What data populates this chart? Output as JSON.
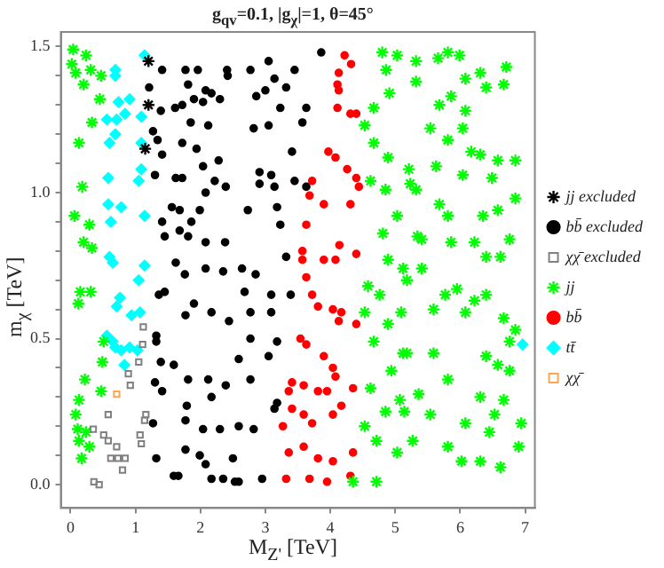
{
  "chart_data": {
    "type": "scatter",
    "title": "g$_{qv}$=0.1, |g$_{χ}$|=1, θ=45°",
    "xlabel": "M$_{Z'}$ [TeV]",
    "ylabel": "m$_{χ}$ [TeV]",
    "xlim": [
      -0.15,
      7.15
    ],
    "ylim": [
      -0.08,
      1.55
    ],
    "xticks": [
      0,
      1,
      2,
      3,
      4,
      5,
      6,
      7
    ],
    "yticks": [
      {
        "value": 0,
        "label": "0.0"
      },
      {
        "value": 0.1,
        "label": null
      },
      {
        "value": 0.2,
        "label": null
      },
      {
        "value": 0.3,
        "label": null
      },
      {
        "value": 0.4,
        "label": null
      },
      {
        "value": 0.5,
        "label": "0.5"
      },
      {
        "value": 0.6,
        "label": null
      },
      {
        "value": 0.7,
        "label": null
      },
      {
        "value": 0.8,
        "label": null
      },
      {
        "value": 0.9,
        "label": null
      },
      {
        "value": 1,
        "label": "1.0"
      },
      {
        "value": 1.1,
        "label": null
      },
      {
        "value": 1.2,
        "label": null
      },
      {
        "value": 1.3,
        "label": null
      },
      {
        "value": 1.4,
        "label": null
      },
      {
        "value": 1.5,
        "label": "1.5"
      }
    ],
    "legend": "right",
    "series": [
      {
        "name": "jj excluded",
        "color": "#000000",
        "marker": "cross",
        "x": [
          1.2,
          1.2,
          1.15
        ],
        "values": [
          1.45,
          1.3,
          1.15
        ]
      },
      {
        "name": "bb̄ excluded",
        "color": "#000000",
        "marker": "circle",
        "x": [
          1.21,
          1.41,
          1.39,
          1.27,
          1.34,
          1.41,
          1.3,
          1.77,
          1.81,
          1.96,
          1.61,
          1.72,
          1.9,
          2.08,
          2.04,
          2.17,
          2.41,
          2.42,
          2.3,
          1.85,
          2.12,
          1.72,
          1.94,
          2.28,
          2.04,
          1.62,
          1.72,
          1.41,
          1.56,
          1.68,
          1.86,
          1.99,
          2.08,
          2.22,
          2.39,
          1.45,
          1.68,
          1.81,
          2.08,
          2.38,
          1.62,
          1.76,
          2.08,
          2.35,
          1.45,
          1.36,
          1.77,
          1.9,
          2.17,
          2.44,
          1.32,
          1.32,
          1.39,
          1.59,
          1.81,
          2.12,
          2.39,
          1.3,
          1.41,
          1.79,
          2.17,
          1.27,
          1.77,
          2.04,
          2.3,
          1.32,
          1.77,
          1.99,
          2.08,
          1.59,
          1.66,
          2.17,
          2.35,
          2.53,
          3.86,
          3.05,
          2.77,
          3.45,
          3.14,
          3.0,
          3.32,
          2.86,
          3.63,
          3.23,
          3.57,
          2.82,
          3.05,
          3.41,
          2.91,
          3.09,
          2.91,
          3.14,
          3.45,
          3.63,
          2.73,
          3.18,
          3.23,
          3.32,
          2.64,
          2.85,
          2.68,
          3.09,
          3.39,
          2.77,
          3.09,
          3.18,
          2.77,
          3.05,
          2.59,
          2.77,
          3.18,
          3.14,
          2.59,
          2.82,
          2.5,
          2.95,
          2.59
        ],
        "values": [
          1.36,
          1.42,
          1.28,
          1.21,
          1.18,
          1.13,
          1.06,
          1.42,
          1.37,
          1.42,
          1.29,
          1.3,
          1.32,
          1.35,
          1.31,
          1.34,
          1.42,
          1.4,
          1.32,
          1.24,
          1.23,
          1.17,
          1.15,
          1.11,
          1.09,
          1.05,
          1.05,
          0.9,
          0.95,
          0.94,
          0.9,
          0.94,
          1.0,
          1.04,
          1.02,
          0.85,
          0.87,
          0.85,
          0.83,
          0.83,
          0.76,
          0.72,
          0.74,
          0.73,
          0.66,
          0.65,
          0.58,
          0.62,
          0.59,
          0.56,
          0.51,
          0.49,
          0.42,
          0.41,
          0.36,
          0.36,
          0.34,
          0.35,
          0.32,
          0.27,
          0.3,
          0.21,
          0.22,
          0.19,
          0.19,
          0.09,
          0.12,
          0.1,
          0.07,
          0.03,
          0.03,
          0.02,
          0.02,
          0.01,
          1.48,
          1.45,
          1.42,
          1.42,
          1.39,
          1.35,
          1.36,
          1.33,
          1.29,
          1.29,
          1.24,
          1.22,
          1.23,
          1.14,
          1.07,
          1.06,
          1.03,
          1.02,
          1.04,
          1.02,
          0.94,
          0.95,
          0.89,
          0.78,
          0.74,
          0.72,
          0.66,
          0.65,
          0.65,
          0.59,
          0.59,
          0.49,
          0.5,
          0.44,
          0.43,
          0.36,
          0.28,
          0.26,
          0.2,
          0.19,
          0.09,
          0.02,
          0.01
        ]
      },
      {
        "name": "χχ̄ excluded",
        "color": "#808080",
        "marker": "square",
        "x": [
          1.12,
          1.11,
          0.89,
          0.92,
          1.05,
          0.58,
          1.16,
          1.14,
          0.35,
          1.07,
          0.51,
          0.58,
          0.71,
          1.09,
          0.62,
          0.73,
          0.84,
          0.8,
          0.36,
          0.44
        ],
        "values": [
          0.54,
          0.48,
          0.38,
          0.34,
          0.42,
          0.24,
          0.24,
          0.22,
          0.19,
          0.17,
          0.17,
          0.15,
          0.13,
          0.14,
          0.09,
          0.09,
          0.09,
          0.05,
          0.01,
          0.0
        ]
      },
      {
        "name": "jj",
        "color": "#00ff00",
        "marker": "cross",
        "x": [
          0.04,
          0.02,
          0.24,
          0.08,
          0.31,
          0.47,
          0.2,
          0.45,
          0.33,
          0.13,
          0.18,
          0.06,
          0.29,
          0.2,
          0.33,
          0.15,
          0.31,
          0.12,
          0.51,
          0.49,
          0.22,
          0.47,
          0.13,
          0.08,
          0.11,
          0.24,
          0.13,
          0.29,
          0.17,
          4.8,
          5.03,
          4.86,
          4.91,
          4.67,
          4.53,
          4.67,
          4.89,
          5.21,
          4.62,
          4.85,
          5.03,
          4.81,
          5.34,
          4.89,
          5.12,
          4.58,
          4.76,
          4.53,
          4.89,
          4.67,
          5.12,
          4.94,
          4.62,
          5.07,
          4.85,
          4.53,
          4.71,
          5.03,
          4.35,
          4.71,
          5.32,
          5.81,
          5.99,
          5.66,
          6.08,
          6.31,
          6.71,
          6.67,
          6.4,
          5.32,
          5.68,
          5.86,
          5.54,
          6.08,
          5.81,
          6.04,
          6.17,
          6.31,
          6.58,
          6.85,
          5.63,
          6.04,
          6.49,
          5.23,
          5.32,
          6.85,
          6.58,
          5.68,
          6.35,
          5.81,
          5.41,
          5.86,
          6.22,
          6.76,
          6.62,
          6.4,
          5.41,
          5.18,
          5.77,
          5.95,
          6.22,
          6.4,
          5.09,
          5.59,
          6.08,
          6.67,
          6.85,
          6.76,
          5.18,
          5.59,
          6.4,
          6.58,
          5.81,
          6.76,
          5.36,
          5.54,
          6.31,
          6.67,
          5.14,
          6.08,
          6.53,
          6.94,
          5.27,
          5.81,
          6.45,
          6.9,
          6.02,
          6.31,
          6.62
        ],
        "values": [
          1.49,
          1.44,
          1.47,
          1.41,
          1.42,
          1.4,
          1.37,
          1.32,
          1.24,
          1.17,
          1.02,
          0.92,
          0.89,
          0.83,
          0.81,
          0.66,
          0.66,
          0.62,
          0.49,
          0.42,
          0.36,
          0.32,
          0.29,
          0.24,
          0.19,
          0.18,
          0.15,
          0.13,
          0.09,
          1.48,
          1.47,
          1.42,
          1.34,
          1.29,
          1.23,
          1.17,
          1.12,
          1.08,
          1.04,
          1.01,
          0.92,
          0.86,
          0.85,
          0.77,
          0.74,
          0.68,
          0.65,
          0.59,
          0.55,
          0.49,
          0.45,
          0.39,
          0.33,
          0.29,
          0.25,
          0.2,
          0.15,
          0.11,
          0.01,
          0.01,
          1.45,
          1.48,
          1.47,
          1.46,
          1.39,
          1.41,
          1.43,
          1.37,
          1.36,
          1.38,
          1.3,
          1.33,
          1.22,
          1.28,
          1.18,
          1.22,
          1.14,
          1.13,
          1.11,
          1.11,
          1.09,
          1.06,
          1.05,
          1.03,
          1.01,
          0.98,
          0.94,
          0.96,
          0.92,
          0.92,
          0.84,
          0.83,
          0.83,
          0.84,
          0.78,
          0.78,
          0.74,
          0.7,
          0.65,
          0.67,
          0.63,
          0.65,
          0.59,
          0.6,
          0.59,
          0.57,
          0.53,
          0.49,
          0.45,
          0.45,
          0.44,
          0.41,
          0.36,
          0.39,
          0.31,
          0.24,
          0.3,
          0.29,
          0.25,
          0.21,
          0.24,
          0.21,
          0.15,
          0.13,
          0.18,
          0.13,
          0.08,
          0.08,
          0.06
        ]
      },
      {
        "name": "bb̄",
        "color": "#ff0000",
        "marker": "circle",
        "x": [
          4.22,
          4.32,
          4.13,
          4.11,
          4.13,
          4.11,
          4.31,
          4.4,
          3.97,
          4.08,
          4.26,
          4.4,
          4.44,
          3.72,
          3.68,
          3.9,
          4.31,
          3.63,
          3.57,
          3.57,
          3.9,
          4.08,
          4.14,
          4.4,
          3.63,
          3.72,
          3.81,
          4.04,
          4.13,
          4.17,
          4.4,
          3.54,
          3.63,
          3.9,
          4.04,
          4.08,
          3.41,
          3.59,
          3.81,
          3.95,
          3.36,
          4.35,
          3.41,
          3.59,
          3.72,
          4.04,
          4.17,
          3.27,
          3.59,
          3.36,
          3.81,
          4.04,
          4.35,
          3.32,
          3.68,
          3.95,
          4.31
        ],
        "values": [
          1.47,
          1.44,
          1.41,
          1.37,
          1.35,
          1.29,
          1.27,
          1.27,
          1.14,
          1.12,
          1.08,
          1.05,
          1.02,
          1.04,
          0.99,
          0.96,
          0.96,
          0.89,
          0.8,
          0.77,
          0.77,
          0.77,
          0.82,
          0.79,
          0.71,
          0.65,
          0.61,
          0.6,
          0.56,
          0.59,
          0.55,
          0.5,
          0.48,
          0.44,
          0.4,
          0.37,
          0.35,
          0.34,
          0.32,
          0.32,
          0.32,
          0.33,
          0.26,
          0.24,
          0.21,
          0.24,
          0.27,
          0.2,
          0.13,
          0.11,
          0.09,
          0.08,
          0.11,
          0.02,
          0.02,
          0.01,
          0.03
        ]
      },
      {
        "name": "tt̄",
        "color": "#00ffff",
        "marker": "diamond",
        "x": [
          1.14,
          0.69,
          0.69,
          0.74,
          0.91,
          0.56,
          0.71,
          0.84,
          1.09,
          0.6,
          1.09,
          0.69,
          0.58,
          1.09,
          1.05,
          0.58,
          0.78,
          1.14,
          0.62,
          0.6,
          0.65,
          1.14,
          1.05,
          0.76,
          0.71,
          1.07,
          0.94,
          0.56,
          0.65,
          0.69,
          0.78,
          0.91,
          1.03,
          0.83,
          6.96
        ],
        "values": [
          1.47,
          1.42,
          1.4,
          1.31,
          1.32,
          1.25,
          1.25,
          1.27,
          1.26,
          1.17,
          1.17,
          1.2,
          1.05,
          1.08,
          1.04,
          0.96,
          0.95,
          0.92,
          0.9,
          0.78,
          0.76,
          0.75,
          0.7,
          0.64,
          0.61,
          0.59,
          0.58,
          0.51,
          0.49,
          0.47,
          0.46,
          0.47,
          0.46,
          0.41,
          0.48
        ]
      },
      {
        "name": "χχ̄",
        "color": "#ffa54f",
        "marker": "square",
        "x": [
          0.71
        ],
        "values": [
          0.31
        ]
      }
    ]
  }
}
